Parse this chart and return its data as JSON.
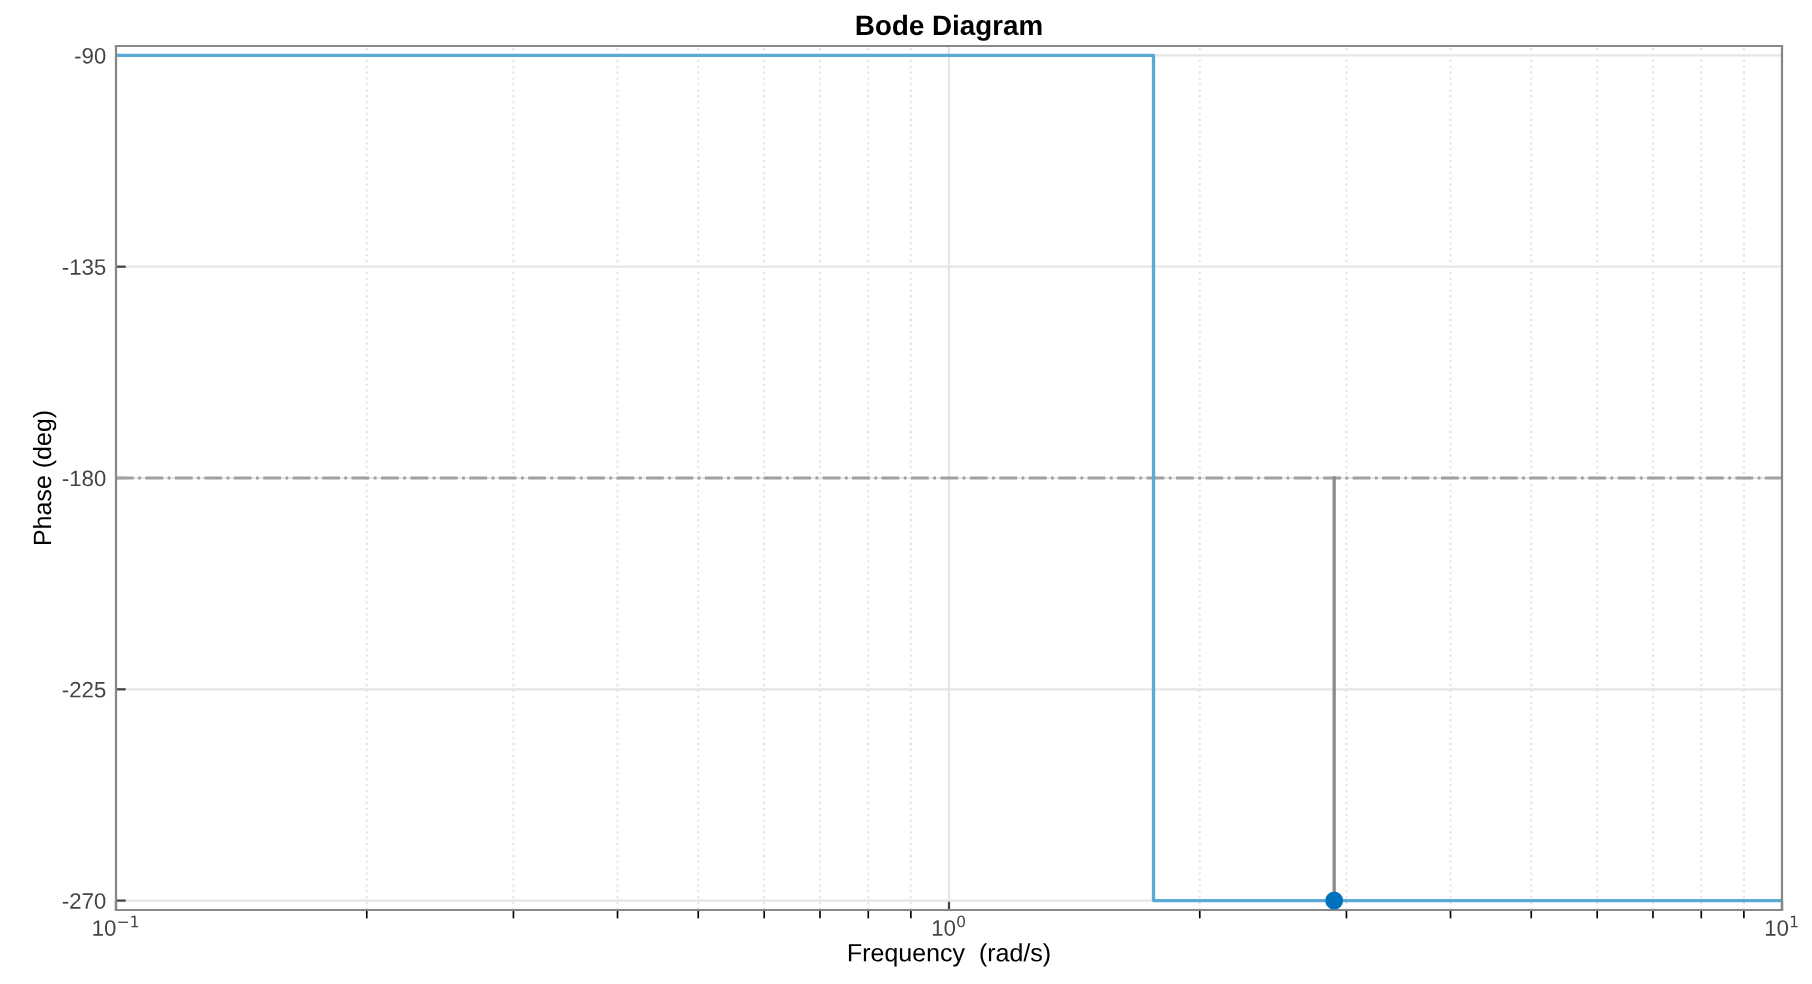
{
  "chart_data": {
    "type": "line",
    "title": "Bode Diagram",
    "xlabel": "Frequency  (rad/s)",
    "ylabel": "Phase (deg)",
    "log": "x",
    "grid": true,
    "legend": false,
    "xlim": [
      0.1,
      10
    ],
    "xticks": [
      {
        "value": 0.1,
        "label": "10$^{−1}$"
      },
      {
        "value": 1,
        "label": "10$^{0}$"
      },
      {
        "value": 10,
        "label": "10$^{1}$"
      }
    ],
    "ylim": [
      -272,
      -88
    ],
    "yticks": [
      -90,
      -135,
      -180,
      -225,
      -270
    ],
    "ref_lines": [
      {
        "axis": "y",
        "value": -180,
        "color": "#a0a0a0",
        "line_style": "dashdot"
      }
    ],
    "series": [
      {
        "color": "#5aaad6",
        "x": [
          0.1,
          1.76,
          1.76,
          10
        ],
        "values": [
          -90,
          -90,
          -270,
          -270
        ]
      },
      {
        "type": "line",
        "color": "#8c8c8c",
        "x": [
          2.9,
          2.9
        ],
        "values": [
          -180,
          -270
        ]
      },
      {
        "type": "scatter",
        "color": "#0072bd",
        "marker": "circle",
        "x": [
          2.9
        ],
        "values": [
          -270
        ]
      }
    ]
  }
}
